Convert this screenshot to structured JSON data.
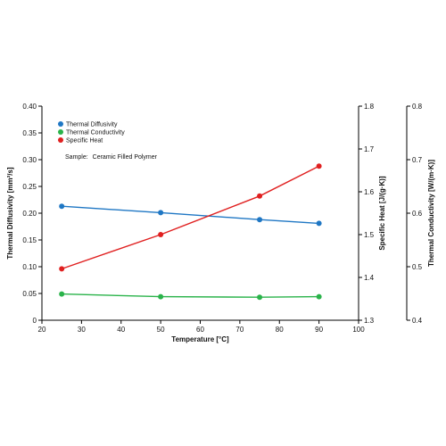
{
  "chart_data": {
    "type": "line",
    "annotation": {
      "label": "Sample:",
      "value": "Ceramic Filled Polymer"
    },
    "x": [
      25,
      50,
      75,
      90
    ],
    "xlabel": "Temperature [°C]",
    "xlim": [
      20,
      100
    ],
    "xticks": [
      20,
      30,
      40,
      50,
      60,
      70,
      80,
      90,
      100
    ],
    "y_axes": [
      {
        "id": "left",
        "label": "Thermal Diffusivity [mm²/s]",
        "range": [
          0,
          0.4
        ],
        "ticks": [
          "0",
          "0.05",
          "0.10",
          "0.15",
          "0.20",
          "0.25",
          "0.30",
          "0.35",
          "0.40"
        ]
      },
      {
        "id": "right1",
        "label": "Specific Heat [J/(g·K)]",
        "range": [
          1.3,
          1.8
        ],
        "ticks": [
          "1.3",
          "1.4",
          "1.5",
          "1.6",
          "1.7",
          "1.8"
        ]
      },
      {
        "id": "right2",
        "label": "Thermal Conductivity [W/(m·K)]",
        "range": [
          0.4,
          0.8
        ],
        "ticks": [
          "0.4",
          "0.5",
          "0.6",
          "0.7",
          "0.8"
        ]
      }
    ],
    "series": [
      {
        "name": "Thermal Diffusivity",
        "axis": "left",
        "color": "#1f77c4",
        "values": [
          0.213,
          0.201,
          0.188,
          0.181
        ]
      },
      {
        "name": "Thermal Conductivity",
        "axis": "left",
        "color": "#2ab34a",
        "values": [
          0.049,
          0.044,
          0.043,
          0.044
        ]
      },
      {
        "name": "Specific Heat",
        "axis": "right1",
        "color": "#e02020",
        "values": [
          1.42,
          1.5,
          1.59,
          1.66
        ]
      }
    ],
    "legend_position": "top-left",
    "grid": false
  }
}
